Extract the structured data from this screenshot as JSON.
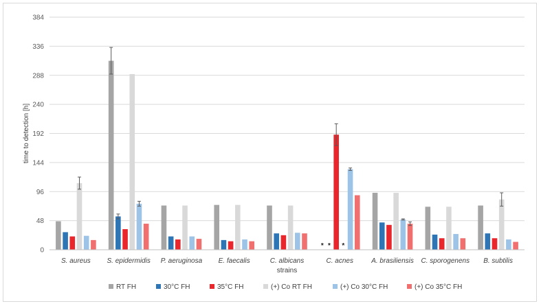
{
  "chart_data": {
    "type": "bar",
    "xlabel": "strains",
    "ylabel": "time to detection [h]",
    "ylim": [
      0,
      384
    ],
    "yticks": [
      0,
      48,
      96,
      144,
      192,
      240,
      288,
      336,
      384
    ],
    "grid": true,
    "legend_position": "bottom",
    "categories": [
      "S. aureus",
      "S. epidermidis",
      "P. aeruginosa",
      "E. faecalis",
      "C. albicans",
      "C. acnes",
      "A. brasiliensis",
      "C. sporogenens",
      "B. subtilis"
    ],
    "series": [
      {
        "name": "RT FH",
        "color": "#a5a5a5",
        "values": [
          47,
          312,
          73,
          74,
          73,
          0,
          94,
          71,
          73
        ],
        "errors": [
          0,
          22,
          0,
          0,
          0,
          0,
          0,
          0,
          0
        ],
        "markers": [
          "",
          "",
          "",
          "",
          "",
          "*",
          "",
          "",
          ""
        ]
      },
      {
        "name": "30°C FH",
        "color": "#2e75b6",
        "values": [
          29,
          55,
          22,
          16,
          27,
          0,
          45,
          25,
          27
        ],
        "errors": [
          0,
          4,
          0,
          0,
          0,
          0,
          0,
          0,
          0
        ],
        "markers": [
          "",
          "",
          "",
          "",
          "",
          "*",
          "",
          "",
          ""
        ]
      },
      {
        "name": "35°C FH",
        "color": "#e8262c",
        "values": [
          22,
          34,
          17,
          14,
          24,
          190,
          41,
          19,
          19
        ],
        "errors": [
          0,
          0,
          0,
          0,
          0,
          18,
          0,
          0,
          0
        ],
        "markers": [
          "",
          "",
          "",
          "",
          "",
          "",
          "",
          "",
          ""
        ]
      },
      {
        "name": "(+) Co RT FH",
        "color": "#d9d9d9",
        "values": [
          110,
          290,
          73,
          74,
          73,
          0,
          94,
          71,
          83
        ],
        "errors": [
          10,
          0,
          0,
          0,
          0,
          0,
          0,
          0,
          11
        ],
        "markers": [
          "",
          "",
          "",
          "",
          "",
          "*",
          "",
          "",
          ""
        ]
      },
      {
        "name": "(+) Co 30°C FH",
        "color": "#9dc3e6",
        "values": [
          23,
          76,
          22,
          17,
          28,
          133,
          50,
          26,
          17
        ],
        "errors": [
          0,
          4,
          0,
          0,
          0,
          2,
          1,
          0,
          0
        ],
        "markers": [
          "",
          "",
          "",
          "",
          "",
          "",
          "",
          "",
          ""
        ]
      },
      {
        "name": "(+) Co 35°C FH",
        "color": "#f07070",
        "values": [
          16,
          43,
          18,
          14,
          27,
          90,
          43,
          19,
          13
        ],
        "errors": [
          0,
          0,
          0,
          0,
          0,
          0,
          3,
          0,
          0
        ],
        "markers": [
          "",
          "",
          "",
          "",
          "",
          "",
          "",
          "",
          ""
        ]
      }
    ]
  }
}
